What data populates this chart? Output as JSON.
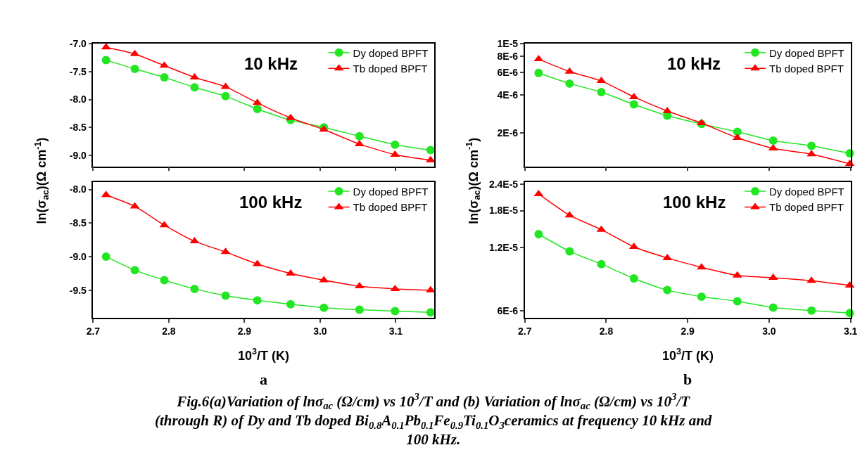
{
  "chart_data": [
    {
      "type": "line",
      "annotations": [
        "10 kHz"
      ],
      "ylabel": "ln(σ$_{ac}$)(Ω cm$^{-1}$)",
      "x": [
        2.717,
        2.755,
        2.794,
        2.834,
        2.875,
        2.917,
        2.961,
        3.005,
        3.052,
        3.099,
        3.146
      ],
      "xlim": [
        2.7,
        3.151
      ],
      "xticks": [
        {
          "value": 2.7,
          "label": null
        },
        {
          "value": 2.8,
          "label": null
        },
        {
          "value": 2.9,
          "label": null
        },
        {
          "value": 3.0,
          "label": null
        },
        {
          "value": 3.1,
          "label": null
        }
      ],
      "ylim": [
        -9.2,
        -6.99
      ],
      "yticks": [
        {
          "value": -7.0,
          "label": "-7.0"
        },
        -7.5,
        {
          "value": -8.0,
          "label": "-8.0"
        },
        -8.5,
        {
          "value": -9.0,
          "label": "-9.0"
        }
      ],
      "tick_labels": "y",
      "legend": "top right",
      "grid": false,
      "series": [
        {
          "name": "Dy doped BPFT",
          "color": "#22e622",
          "marker": "circle",
          "values": [
            -7.29,
            -7.45,
            -7.6,
            -7.78,
            -7.94,
            -8.17,
            -8.37,
            -8.5,
            -8.66,
            -8.81,
            -8.91
          ]
        },
        {
          "name": "Tb doped BPFT",
          "color": "#ff0000",
          "marker": "triangle",
          "values": [
            -7.06,
            -7.18,
            -7.39,
            -7.6,
            -7.77,
            -8.06,
            -8.33,
            -8.54,
            -8.8,
            -8.99,
            -9.09
          ]
        }
      ]
    },
    {
      "type": "line",
      "annotations": [
        "100 kHz",
        "a"
      ],
      "xlabel": "10$^{3}$/T (K)",
      "x": [
        2.717,
        2.755,
        2.794,
        2.834,
        2.875,
        2.917,
        2.961,
        3.005,
        3.052,
        3.099,
        3.146
      ],
      "xlim": [
        2.7,
        3.151
      ],
      "xticks": [
        2.7,
        2.8,
        2.9,
        {
          "value": 3.0,
          "label": "3.0"
        },
        3.1
      ],
      "ylim": [
        -9.91,
        -7.89
      ],
      "yticks": [
        {
          "value": -8.0,
          "label": "-8.0"
        },
        -8.5,
        {
          "value": -9.0,
          "label": "-9.0"
        },
        -9.5
      ],
      "legend": "top right",
      "grid": false,
      "series": [
        {
          "name": "Dy doped BPFT",
          "color": "#22e622",
          "marker": "circle",
          "values": [
            -9.0,
            -9.2,
            -9.35,
            -9.48,
            -9.58,
            -9.65,
            -9.71,
            -9.76,
            -9.79,
            -9.81,
            -9.83
          ]
        },
        {
          "name": "Tb doped BPFT",
          "color": "#ff0000",
          "marker": "triangle",
          "values": [
            -8.08,
            -8.25,
            -8.53,
            -8.77,
            -8.93,
            -9.11,
            -9.25,
            -9.35,
            -9.44,
            -9.48,
            -9.5
          ]
        }
      ]
    },
    {
      "type": "line",
      "annotations": [
        "10 kHz"
      ],
      "ylabel": "ln(σ$_{ac}$)(Ω cm$^{-1}$)",
      "log": "y",
      "x": [
        2.717,
        2.755,
        2.794,
        2.834,
        2.875,
        2.917,
        2.961,
        3.005,
        3.052,
        3.099
      ],
      "xlim": [
        2.7,
        3.1
      ],
      "xticks": [
        {
          "value": 2.7,
          "label": null
        },
        {
          "value": 2.8,
          "label": null
        },
        {
          "value": 2.9,
          "label": null
        },
        {
          "value": 3.0,
          "label": null
        },
        {
          "value": 3.1,
          "label": null
        }
      ],
      "ylim": [
        1.1e-06,
        1.01e-05
      ],
      "yticks": [
        {
          "value": 2e-06,
          "label": "2E-6"
        },
        {
          "value": 4e-06,
          "label": "4E-6"
        },
        {
          "value": 6e-06,
          "label": "6E-6"
        },
        {
          "value": 8e-06,
          "label": "8E-6"
        },
        {
          "value": 1e-05,
          "label": "1E-5"
        }
      ],
      "tick_labels": "y",
      "legend": "top right",
      "grid": false,
      "series": [
        {
          "name": "Dy doped BPFT",
          "color": "#22e622",
          "marker": "circle",
          "values": [
            5.92e-06,
            4.89e-06,
            4.19e-06,
            3.36e-06,
            2.74e-06,
            2.36e-06,
            2.05e-06,
            1.75e-06,
            1.59e-06,
            1.39e-06
          ]
        },
        {
          "name": "Tb doped BPFT",
          "color": "#ff0000",
          "marker": "triangle",
          "values": [
            7.6e-06,
            6.07e-06,
            5.13e-06,
            3.84e-06,
            2.98e-06,
            2.4e-06,
            1.84e-06,
            1.52e-06,
            1.37e-06,
            1.15e-06
          ]
        }
      ]
    },
    {
      "type": "line",
      "annotations": [
        "100 kHz",
        "b",
        "Fig.6(a)Variation of lnσ$_{ac}$ (Ω/cm) vs 10$^{3}$/T and (b) Variation of lnσ$_{ac}$ (Ω/cm) vs 10$^{3}$/T (through R) of Dy and Tb doped Bi$_{0.8}$A$_{0.1}$Pb$_{0.1}$Fe$_{0.9}$Ti$_{0.1}$O$_{3}$ceramics at frequency 10 kHz and 100 kHz."
      ],
      "xlabel": "10$^{3}$/T (K)",
      "log": "y",
      "x": [
        2.717,
        2.755,
        2.794,
        2.834,
        2.875,
        2.917,
        2.961,
        3.005,
        3.052,
        3.099
      ],
      "xlim": [
        2.7,
        3.1
      ],
      "xticks": [
        2.7,
        2.8,
        2.9,
        {
          "value": 3.0,
          "label": "3.0"
        },
        3.1
      ],
      "ylim": [
        5.55e-06,
        2.46e-05
      ],
      "yticks": [
        {
          "value": 6e-06,
          "label": "6E-6"
        },
        {
          "value": 1.2e-05,
          "label": "1.2E-5"
        },
        {
          "value": 1.8e-05,
          "label": "1.8E-5"
        },
        {
          "value": 2.4e-05,
          "label": "2.4E-5"
        }
      ],
      "legend": "top right",
      "grid": false,
      "series": [
        {
          "name": "Dy doped BPFT",
          "color": "#22e622",
          "marker": "circle",
          "values": [
            1.39e-05,
            1.15e-05,
            1e-05,
            8.55e-06,
            7.52e-06,
            7e-06,
            6.65e-06,
            6.2e-06,
            6e-06,
            5.85e-06
          ]
        },
        {
          "name": "Tb doped BPFT",
          "color": "#ff0000",
          "marker": "triangle",
          "values": [
            2.16e-05,
            1.71e-05,
            1.46e-05,
            1.21e-05,
            1.07e-05,
            9.66e-06,
            8.83e-06,
            8.61e-06,
            8.33e-06,
            7.91e-06
          ]
        }
      ]
    }
  ]
}
